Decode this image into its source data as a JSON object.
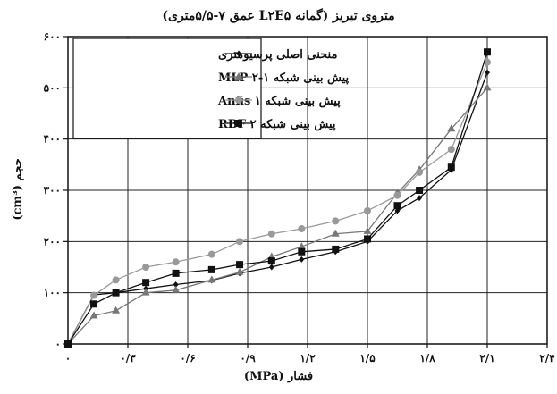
{
  "chart_data": {
    "type": "line",
    "title": "متروی تبریز (گمانه L۲E۵ عمق ۷-۵/۵متری)",
    "xlabel": "فشار (MPa)",
    "ylabel": "حجم (cm³)",
    "xlim": [
      0,
      2.4
    ],
    "ylim": [
      0,
      600
    ],
    "x_ticks": [
      0,
      0.3,
      0.6,
      0.9,
      1.2,
      1.5,
      1.8,
      2.1,
      2.4
    ],
    "x_tick_labels": [
      "۰",
      "۰/۳",
      "۰/۶",
      "۰/۹",
      "۱/۲",
      "۱/۵",
      "۱/۸",
      "۲/۱",
      "۲/۴"
    ],
    "y_ticks": [
      0,
      100,
      200,
      300,
      400,
      500,
      600
    ],
    "y_tick_labels": [
      "۰",
      "۱۰۰",
      "۲۰۰",
      "۳۰۰",
      "۴۰۰",
      "۵۰۰",
      "۶۰۰"
    ],
    "grid": true,
    "legend_position": "top-left",
    "series": [
      {
        "name": "منحنی اصلی پرسیومتری",
        "color": "#111111",
        "marker": "diamond",
        "x": [
          0,
          0.13,
          0.24,
          0.39,
          0.54,
          0.72,
          0.86,
          1.02,
          1.17,
          1.34,
          1.5,
          1.65,
          1.76,
          1.92,
          2.1
        ],
        "y": [
          0,
          96,
          100,
          108,
          116,
          124,
          138,
          150,
          165,
          180,
          200,
          260,
          285,
          340,
          530
        ]
      },
      {
        "name": "پیش بینی شبکه ۱-۲ MLP",
        "color": "#777777",
        "marker": "triangle",
        "x": [
          0,
          0.13,
          0.24,
          0.39,
          0.54,
          0.72,
          0.86,
          1.02,
          1.17,
          1.34,
          1.5,
          1.65,
          1.76,
          1.92,
          2.1
        ],
        "y": [
          0,
          55,
          65,
          100,
          105,
          125,
          140,
          170,
          190,
          215,
          220,
          295,
          340,
          420,
          500
        ]
      },
      {
        "name": "پیش بینی شبکه ۱ Anfis",
        "color": "#999999",
        "marker": "circle",
        "x": [
          0,
          0.13,
          0.24,
          0.39,
          0.54,
          0.72,
          0.86,
          1.02,
          1.17,
          1.34,
          1.5,
          1.65,
          1.76,
          1.92,
          2.1
        ],
        "y": [
          0,
          95,
          125,
          150,
          160,
          175,
          200,
          215,
          225,
          240,
          260,
          290,
          335,
          380,
          550
        ]
      },
      {
        "name": "پیش بینی شبکه ۲ RBF",
        "color": "#111111",
        "marker": "square",
        "x": [
          0,
          0.13,
          0.24,
          0.39,
          0.54,
          0.72,
          0.86,
          1.02,
          1.17,
          1.34,
          1.5,
          1.65,
          1.76,
          1.92,
          2.1
        ],
        "y": [
          0,
          78,
          100,
          120,
          138,
          145,
          155,
          162,
          180,
          185,
          205,
          270,
          300,
          345,
          570
        ]
      }
    ]
  }
}
